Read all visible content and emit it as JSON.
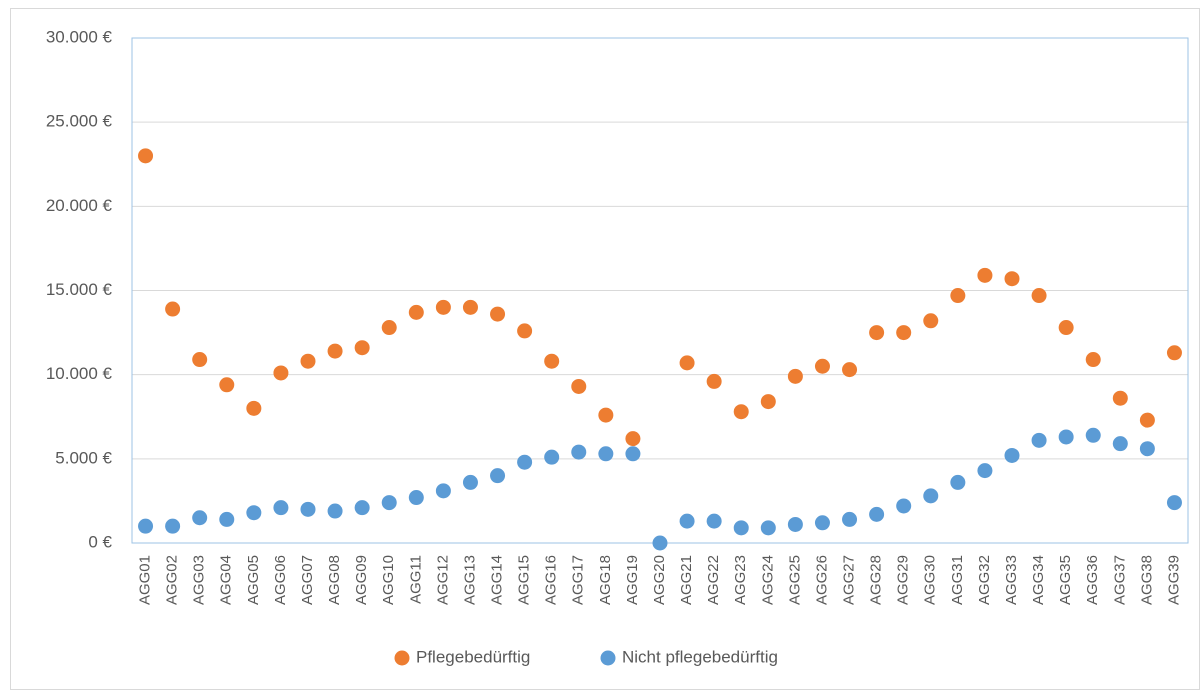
{
  "chart_data": {
    "type": "scatter",
    "categories": [
      "AGG01",
      "AGG02",
      "AGG03",
      "AGG04",
      "AGG05",
      "AGG06",
      "AGG07",
      "AGG08",
      "AGG09",
      "AGG10",
      "AGG11",
      "AGG12",
      "AGG13",
      "AGG14",
      "AGG15",
      "AGG16",
      "AGG17",
      "AGG18",
      "AGG19",
      "AGG20",
      "AGG21",
      "AGG22",
      "AGG23",
      "AGG24",
      "AGG25",
      "AGG26",
      "AGG27",
      "AGG28",
      "AGG29",
      "AGG30",
      "AGG31",
      "AGG32",
      "AGG33",
      "AGG34",
      "AGG35",
      "AGG36",
      "AGG37",
      "AGG38",
      "AGG39"
    ],
    "series": [
      {
        "name": "Pflegebedürftig",
        "color": "#ed7d31",
        "values": [
          23000,
          13900,
          10900,
          9400,
          8000,
          10100,
          10800,
          11400,
          11600,
          12800,
          13700,
          14000,
          14000,
          13600,
          12600,
          10800,
          9300,
          7600,
          6200,
          null,
          10700,
          9600,
          7800,
          8400,
          9900,
          10500,
          10300,
          12500,
          12500,
          13200,
          14700,
          15900,
          15700,
          14700,
          12800,
          10900,
          8600,
          7300,
          11300
        ]
      },
      {
        "name": "Nicht pflegebedürftig",
        "color": "#5b9bd5",
        "values": [
          1000,
          1000,
          1500,
          1400,
          1800,
          2100,
          2000,
          1900,
          2100,
          2400,
          2700,
          3100,
          3600,
          4000,
          4800,
          5100,
          5400,
          5300,
          5300,
          0,
          1300,
          1300,
          900,
          900,
          1100,
          1200,
          1400,
          1700,
          2200,
          2800,
          3600,
          4300,
          5200,
          6100,
          6300,
          6400,
          5900,
          5600,
          2400
        ]
      }
    ],
    "ylim": [
      0,
      30000
    ],
    "yticks": [
      {
        "value": 0,
        "label": "0 €"
      },
      {
        "value": 5000,
        "label": "5.000 €"
      },
      {
        "value": 10000,
        "label": "10.000 €"
      },
      {
        "value": 15000,
        "label": "15.000 €"
      },
      {
        "value": 20000,
        "label": "20.000 €"
      },
      {
        "value": 25000,
        "label": "25.000 €"
      },
      {
        "value": 30000,
        "label": "30.000 €"
      }
    ],
    "grid": true,
    "legend": "bottom"
  }
}
